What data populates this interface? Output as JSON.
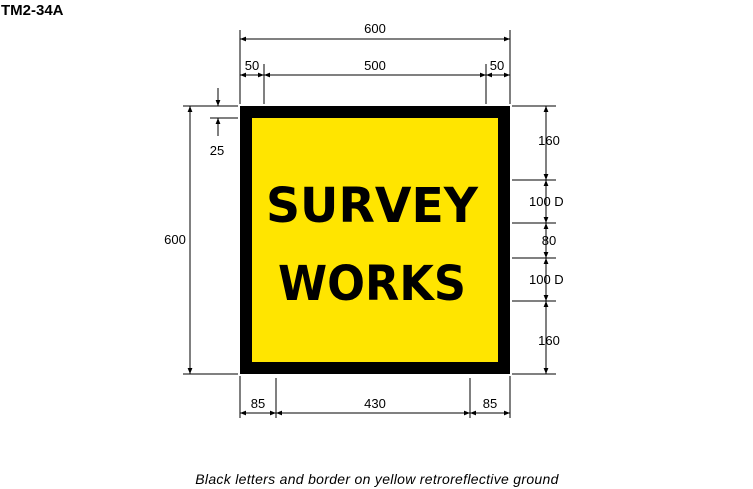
{
  "sign_code": "TM2-34A",
  "colors": {
    "ground": "#FFE500",
    "legend": "#000000",
    "border": "#000000"
  },
  "sign": {
    "line1": "SURVEY",
    "line2": "WORKS"
  },
  "dimensions": {
    "overall_width": "600",
    "border_offset_left": "50",
    "inner_width": "500",
    "border_offset_right": "50",
    "overall_height": "600",
    "border_gap": "25",
    "top_margin": "160",
    "line1_height": "100 D",
    "line_gap": "80",
    "line2_height": "100 D",
    "bottom_margin": "160",
    "legend_left": "85",
    "legend_width": "430",
    "legend_right": "85"
  },
  "caption": "Black letters and border on yellow retroreflective ground"
}
